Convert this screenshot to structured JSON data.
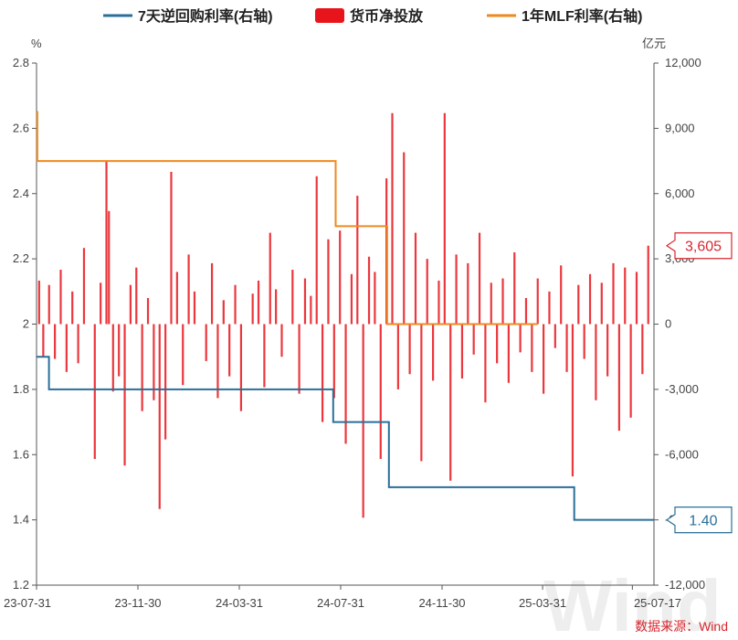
{
  "chart_data": {
    "type": "bar+line",
    "legend": [
      {
        "name": "7天逆回购利率(右轴)",
        "kind": "line",
        "color": "#2a6f97"
      },
      {
        "name": "货币净投放",
        "kind": "bar",
        "color": "#e8141b"
      },
      {
        "name": "1年MLF利率(右轴)",
        "kind": "line",
        "color": "#ef8a1f"
      }
    ],
    "left_axis": {
      "unit": "%",
      "min": 1.2,
      "max": 2.8,
      "ticks": [
        "1.2",
        "1.4",
        "1.6",
        "1.8",
        "2",
        "2.2",
        "2.4",
        "2.6",
        "2.8"
      ]
    },
    "right_axis": {
      "unit": "亿元",
      "min": -12000,
      "max": 12000,
      "ticks": [
        "-12,000",
        "-9,000",
        "-6,000",
        "-3,000",
        "0",
        "3,000",
        "6,000",
        "9,000",
        "12,000"
      ]
    },
    "x_axis": {
      "start": "2023-07-31",
      "end": "2025-08-12",
      "tick_labels": [
        {
          "label": "23-07-31",
          "date": "2023-07-31"
        },
        {
          "label": "23-11-30",
          "date": "2023-11-30"
        },
        {
          "label": "24-03-31",
          "date": "2024-03-31"
        },
        {
          "label": "24-07-31",
          "date": "2024-07-31"
        },
        {
          "label": "24-11-30",
          "date": "2024-11-30"
        },
        {
          "label": "25-03-31",
          "date": "2025-03-31"
        },
        {
          "label": "25-07-17",
          "date": "2025-07-17"
        }
      ]
    },
    "reverse_repo_7d": [
      {
        "date": "2023-07-31",
        "value": 1.9
      },
      {
        "date": "2023-08-15",
        "value": 1.8
      },
      {
        "date": "2024-07-22",
        "value": 1.7
      },
      {
        "date": "2024-09-27",
        "value": 1.5
      },
      {
        "date": "2025-05-08",
        "value": 1.4
      },
      {
        "date": "2025-08-12",
        "value": 1.4
      }
    ],
    "mlf_1y": [
      {
        "date": "2023-07-31",
        "value": 2.65
      },
      {
        "date": "2023-08-01",
        "value": 2.5
      },
      {
        "date": "2024-07-25",
        "value": 2.3
      },
      {
        "date": "2024-09-25",
        "value": 2.0
      },
      {
        "date": "2025-03-25",
        "value": 2.0
      }
    ],
    "net_injection": [
      {
        "date": "2023-08-03",
        "value": 2000
      },
      {
        "date": "2023-08-08",
        "value": -1500
      },
      {
        "date": "2023-08-15",
        "value": 1800
      },
      {
        "date": "2023-08-22",
        "value": -1600
      },
      {
        "date": "2023-08-29",
        "value": 2500
      },
      {
        "date": "2023-09-05",
        "value": -2200
      },
      {
        "date": "2023-09-12",
        "value": 1500
      },
      {
        "date": "2023-09-19",
        "value": -1800
      },
      {
        "date": "2023-09-26",
        "value": 3500
      },
      {
        "date": "2023-10-09",
        "value": -6200
      },
      {
        "date": "2023-10-16",
        "value": 1900
      },
      {
        "date": "2023-10-23",
        "value": 7500
      },
      {
        "date": "2023-10-26",
        "value": 5200
      },
      {
        "date": "2023-10-31",
        "value": -3100
      },
      {
        "date": "2023-11-07",
        "value": -2400
      },
      {
        "date": "2023-11-14",
        "value": -6500
      },
      {
        "date": "2023-11-21",
        "value": 1800
      },
      {
        "date": "2023-11-28",
        "value": 2600
      },
      {
        "date": "2023-12-05",
        "value": -4000
      },
      {
        "date": "2023-12-12",
        "value": 1200
      },
      {
        "date": "2023-12-19",
        "value": -3500
      },
      {
        "date": "2023-12-26",
        "value": -8500
      },
      {
        "date": "2024-01-02",
        "value": -5300
      },
      {
        "date": "2024-01-09",
        "value": 7000
      },
      {
        "date": "2024-01-16",
        "value": 2400
      },
      {
        "date": "2024-01-23",
        "value": -2800
      },
      {
        "date": "2024-01-30",
        "value": 3200
      },
      {
        "date": "2024-02-06",
        "value": 1500
      },
      {
        "date": "2024-02-20",
        "value": -1700
      },
      {
        "date": "2024-02-27",
        "value": 2800
      },
      {
        "date": "2024-03-05",
        "value": -3400
      },
      {
        "date": "2024-03-12",
        "value": 1100
      },
      {
        "date": "2024-03-19",
        "value": -2400
      },
      {
        "date": "2024-03-26",
        "value": 1800
      },
      {
        "date": "2024-04-02",
        "value": -4000
      },
      {
        "date": "2024-04-16",
        "value": 1400
      },
      {
        "date": "2024-04-23",
        "value": 2000
      },
      {
        "date": "2024-04-30",
        "value": -2900
      },
      {
        "date": "2024-05-07",
        "value": 4200
      },
      {
        "date": "2024-05-14",
        "value": 1600
      },
      {
        "date": "2024-05-21",
        "value": -1500
      },
      {
        "date": "2024-06-03",
        "value": 2500
      },
      {
        "date": "2024-06-11",
        "value": -3200
      },
      {
        "date": "2024-06-18",
        "value": 2100
      },
      {
        "date": "2024-06-25",
        "value": 1300
      },
      {
        "date": "2024-07-02",
        "value": 6800
      },
      {
        "date": "2024-07-09",
        "value": -4500
      },
      {
        "date": "2024-07-16",
        "value": 3900
      },
      {
        "date": "2024-07-23",
        "value": -3400
      },
      {
        "date": "2024-07-30",
        "value": 4300
      },
      {
        "date": "2024-08-06",
        "value": -5500
      },
      {
        "date": "2024-08-13",
        "value": 2300
      },
      {
        "date": "2024-08-20",
        "value": 5900
      },
      {
        "date": "2024-08-27",
        "value": -8900
      },
      {
        "date": "2024-09-03",
        "value": 3100
      },
      {
        "date": "2024-09-10",
        "value": 2400
      },
      {
        "date": "2024-09-17",
        "value": -6200
      },
      {
        "date": "2024-09-24",
        "value": 6700
      },
      {
        "date": "2024-10-01",
        "value": 9700
      },
      {
        "date": "2024-10-08",
        "value": -3000
      },
      {
        "date": "2024-10-15",
        "value": 7900
      },
      {
        "date": "2024-10-22",
        "value": -2300
      },
      {
        "date": "2024-10-29",
        "value": 4200
      },
      {
        "date": "2024-11-05",
        "value": -6300
      },
      {
        "date": "2024-11-12",
        "value": 3000
      },
      {
        "date": "2024-11-19",
        "value": -2600
      },
      {
        "date": "2024-11-26",
        "value": 2000
      },
      {
        "date": "2024-12-03",
        "value": 9700
      },
      {
        "date": "2024-12-10",
        "value": -7200
      },
      {
        "date": "2024-12-17",
        "value": 3200
      },
      {
        "date": "2024-12-24",
        "value": -2500
      },
      {
        "date": "2024-12-31",
        "value": 2800
      },
      {
        "date": "2025-01-07",
        "value": -1400
      },
      {
        "date": "2025-01-14",
        "value": 4200
      },
      {
        "date": "2025-01-21",
        "value": -3600
      },
      {
        "date": "2025-01-28",
        "value": 1900
      },
      {
        "date": "2025-02-04",
        "value": -1800
      },
      {
        "date": "2025-02-11",
        "value": 2100
      },
      {
        "date": "2025-02-18",
        "value": -2700
      },
      {
        "date": "2025-02-25",
        "value": 3300
      },
      {
        "date": "2025-03-04",
        "value": -1300
      },
      {
        "date": "2025-03-11",
        "value": 1200
      },
      {
        "date": "2025-03-18",
        "value": -2200
      },
      {
        "date": "2025-03-25",
        "value": 2100
      },
      {
        "date": "2025-04-01",
        "value": -3200
      },
      {
        "date": "2025-04-08",
        "value": 1500
      },
      {
        "date": "2025-04-15",
        "value": -1100
      },
      {
        "date": "2025-04-22",
        "value": 2700
      },
      {
        "date": "2025-04-29",
        "value": -2200
      },
      {
        "date": "2025-05-06",
        "value": -7000
      },
      {
        "date": "2025-05-13",
        "value": 1800
      },
      {
        "date": "2025-05-20",
        "value": -1600
      },
      {
        "date": "2025-05-27",
        "value": 2300
      },
      {
        "date": "2025-06-03",
        "value": -3500
      },
      {
        "date": "2025-06-10",
        "value": 1900
      },
      {
        "date": "2025-06-17",
        "value": -2400
      },
      {
        "date": "2025-06-24",
        "value": 2800
      },
      {
        "date": "2025-07-01",
        "value": -4900
      },
      {
        "date": "2025-07-08",
        "value": 2600
      },
      {
        "date": "2025-07-15",
        "value": -4300
      },
      {
        "date": "2025-07-22",
        "value": 2400
      },
      {
        "date": "2025-07-29",
        "value": -2300
      },
      {
        "date": "2025-08-05",
        "value": 3605
      }
    ],
    "callouts": [
      {
        "label": "3,605",
        "series": "货币净投放",
        "color": "#d9272e"
      },
      {
        "label": "1.40",
        "series": "7天逆回购利率(右轴)",
        "color": "#2a6f97"
      }
    ],
    "source": "数据来源：Wind",
    "watermark": "Wind"
  }
}
